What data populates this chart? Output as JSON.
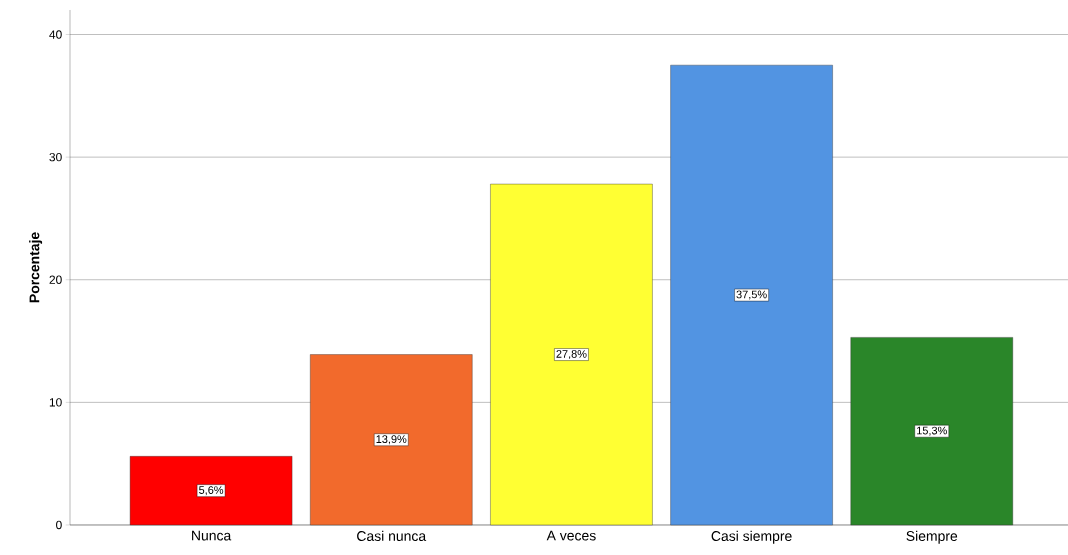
{
  "chart_data": {
    "type": "bar",
    "ylabel": "Porcentaje",
    "categories": [
      "Nunca",
      "Casi nunca",
      "A veces",
      "Casi siempre",
      "Siempre"
    ],
    "values": [
      5.6,
      13.9,
      27.8,
      37.5,
      15.3
    ],
    "colors": [
      "#ff0000",
      "#f26a2c",
      "#ffff33",
      "#5294e2",
      "#2a8629"
    ],
    "value_labels": [
      "5,6%",
      "13,9%",
      "27,8%",
      "37,5%",
      "15,3%"
    ],
    "ylim": [
      0,
      42
    ],
    "yticks": [
      0,
      10,
      20,
      30,
      40
    ],
    "grid": "y"
  }
}
